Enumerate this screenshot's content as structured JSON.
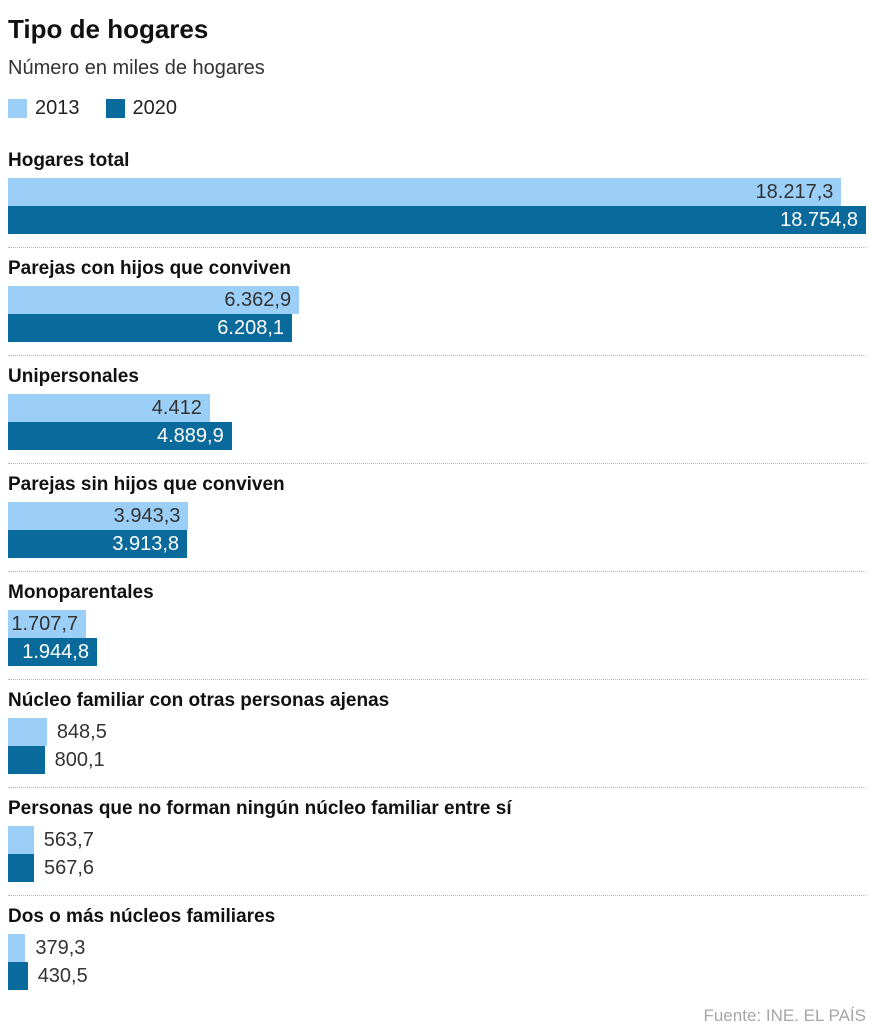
{
  "chart_data": {
    "type": "bar",
    "orientation": "horizontal",
    "title": "Tipo de hogares",
    "subtitle": "Número en miles de hogares",
    "legend_position": "top",
    "grid": false,
    "xlim": [
      0,
      18754.8
    ],
    "categories": [
      "Hogares total",
      "Parejas con hijos que conviven",
      "Unipersonales",
      "Parejas sin hijos que conviven",
      "Monoparentales",
      "Núcleo familiar con otras personas ajenas",
      "Personas que no forman ningún núcleo familiar entre sí",
      "Dos o más núcleos familiares"
    ],
    "series": [
      {
        "name": "2013",
        "color": "#9bcff7",
        "values": [
          18217.3,
          6362.9,
          4412,
          3943.3,
          1707.7,
          848.5,
          563.7,
          379.3
        ],
        "display_values": [
          "18.217,3",
          "6.362,9",
          "4.412",
          "3.943,3",
          "1.707,7",
          "848,5",
          "563,7",
          "379,3"
        ]
      },
      {
        "name": "2020",
        "color": "#0a6a9b",
        "values": [
          18754.8,
          6208.1,
          4889.9,
          3913.8,
          1944.8,
          800.1,
          567.6,
          430.5
        ],
        "display_values": [
          "18.754,8",
          "6.208,1",
          "4.889,9",
          "3.913,8",
          "1.944,8",
          "800,1",
          "567,6",
          "430,5"
        ]
      }
    ],
    "value_labels_inside": [
      true,
      true,
      true,
      true,
      true,
      false,
      false,
      false
    ],
    "text_colors": {
      "value_on_light_bar": "#333333",
      "value_on_dark_bar": "#ffffff",
      "heading": "#111111",
      "source": "#a6a6a6"
    },
    "source": "Fuente: INE. EL PAÍS"
  }
}
